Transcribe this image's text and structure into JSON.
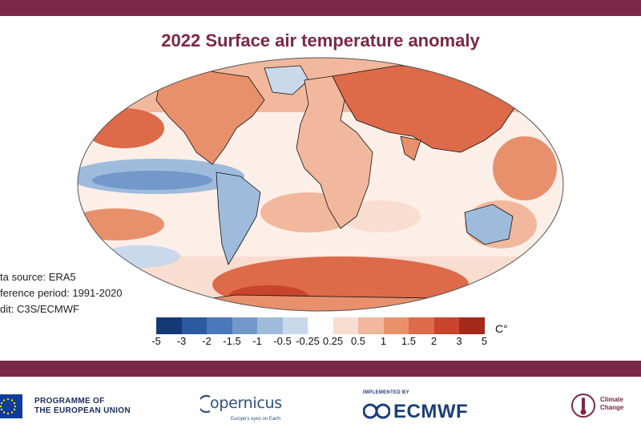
{
  "title": "2022 Surface air temperature anomaly",
  "colors": {
    "band": "#7b2846",
    "title": "#7b2846",
    "ocean_neutral": "#ffffff",
    "outline": "#111111"
  },
  "metadata": {
    "source": "ta source: ERA5",
    "reference": "ference period: 1991-2020",
    "credit": "dit: C3S/ECMWF"
  },
  "legend": {
    "unit": "C°",
    "ticks": [
      "-5",
      "-3",
      "-2",
      "-1.5",
      "-1",
      "-0.5",
      "-0.25",
      "0.25",
      "0.5",
      "1",
      "1.5",
      "2",
      "3",
      "5"
    ],
    "colors": [
      "#143a75",
      "#2b5aa1",
      "#4a78b8",
      "#7299ca",
      "#9fbbdc",
      "#c9d8ea",
      "#ffffff",
      "#f8ddd0",
      "#f1b89d",
      "#e8906c",
      "#dd6a48",
      "#c9442c",
      "#a3291b"
    ]
  },
  "footer": {
    "eu_line1": "PROGRAMME OF",
    "eu_line2": "THE EUROPEAN UNION",
    "copernicus_name": "opernicus",
    "copernicus_tagline": "Europe's eyes on Earth",
    "ecmwf_small": "IMPLEMENTED BY",
    "ecmwf_name": "ECMWF",
    "cc_line1": "Climate",
    "cc_line2": "Change"
  }
}
